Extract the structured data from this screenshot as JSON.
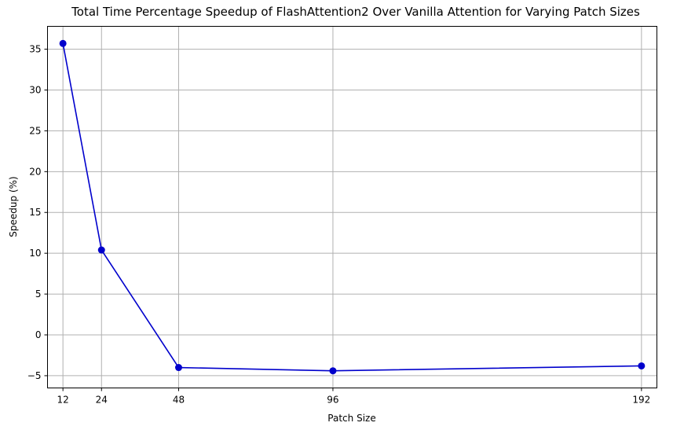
{
  "chart_data": {
    "type": "line",
    "title": "Total Time Percentage Speedup of FlashAttention2 Over Vanilla Attention for Varying Patch Sizes",
    "xlabel": "Patch Size",
    "ylabel": "Speedup (%)",
    "x": [
      12,
      24,
      48,
      96,
      192
    ],
    "x_ticks": [
      "12",
      "24",
      "48",
      "96",
      "192"
    ],
    "xlim": [
      7.2,
      196.8
    ],
    "y_ticks": [
      -5,
      0,
      5,
      10,
      15,
      20,
      25,
      30,
      35
    ],
    "ylim": [
      -6.5,
      37.8
    ],
    "grid": true,
    "series": [
      {
        "values": [
          35.7,
          10.4,
          -4.0,
          -4.4,
          -3.8
        ],
        "color": "#0000cc",
        "marker": "circle"
      }
    ]
  }
}
